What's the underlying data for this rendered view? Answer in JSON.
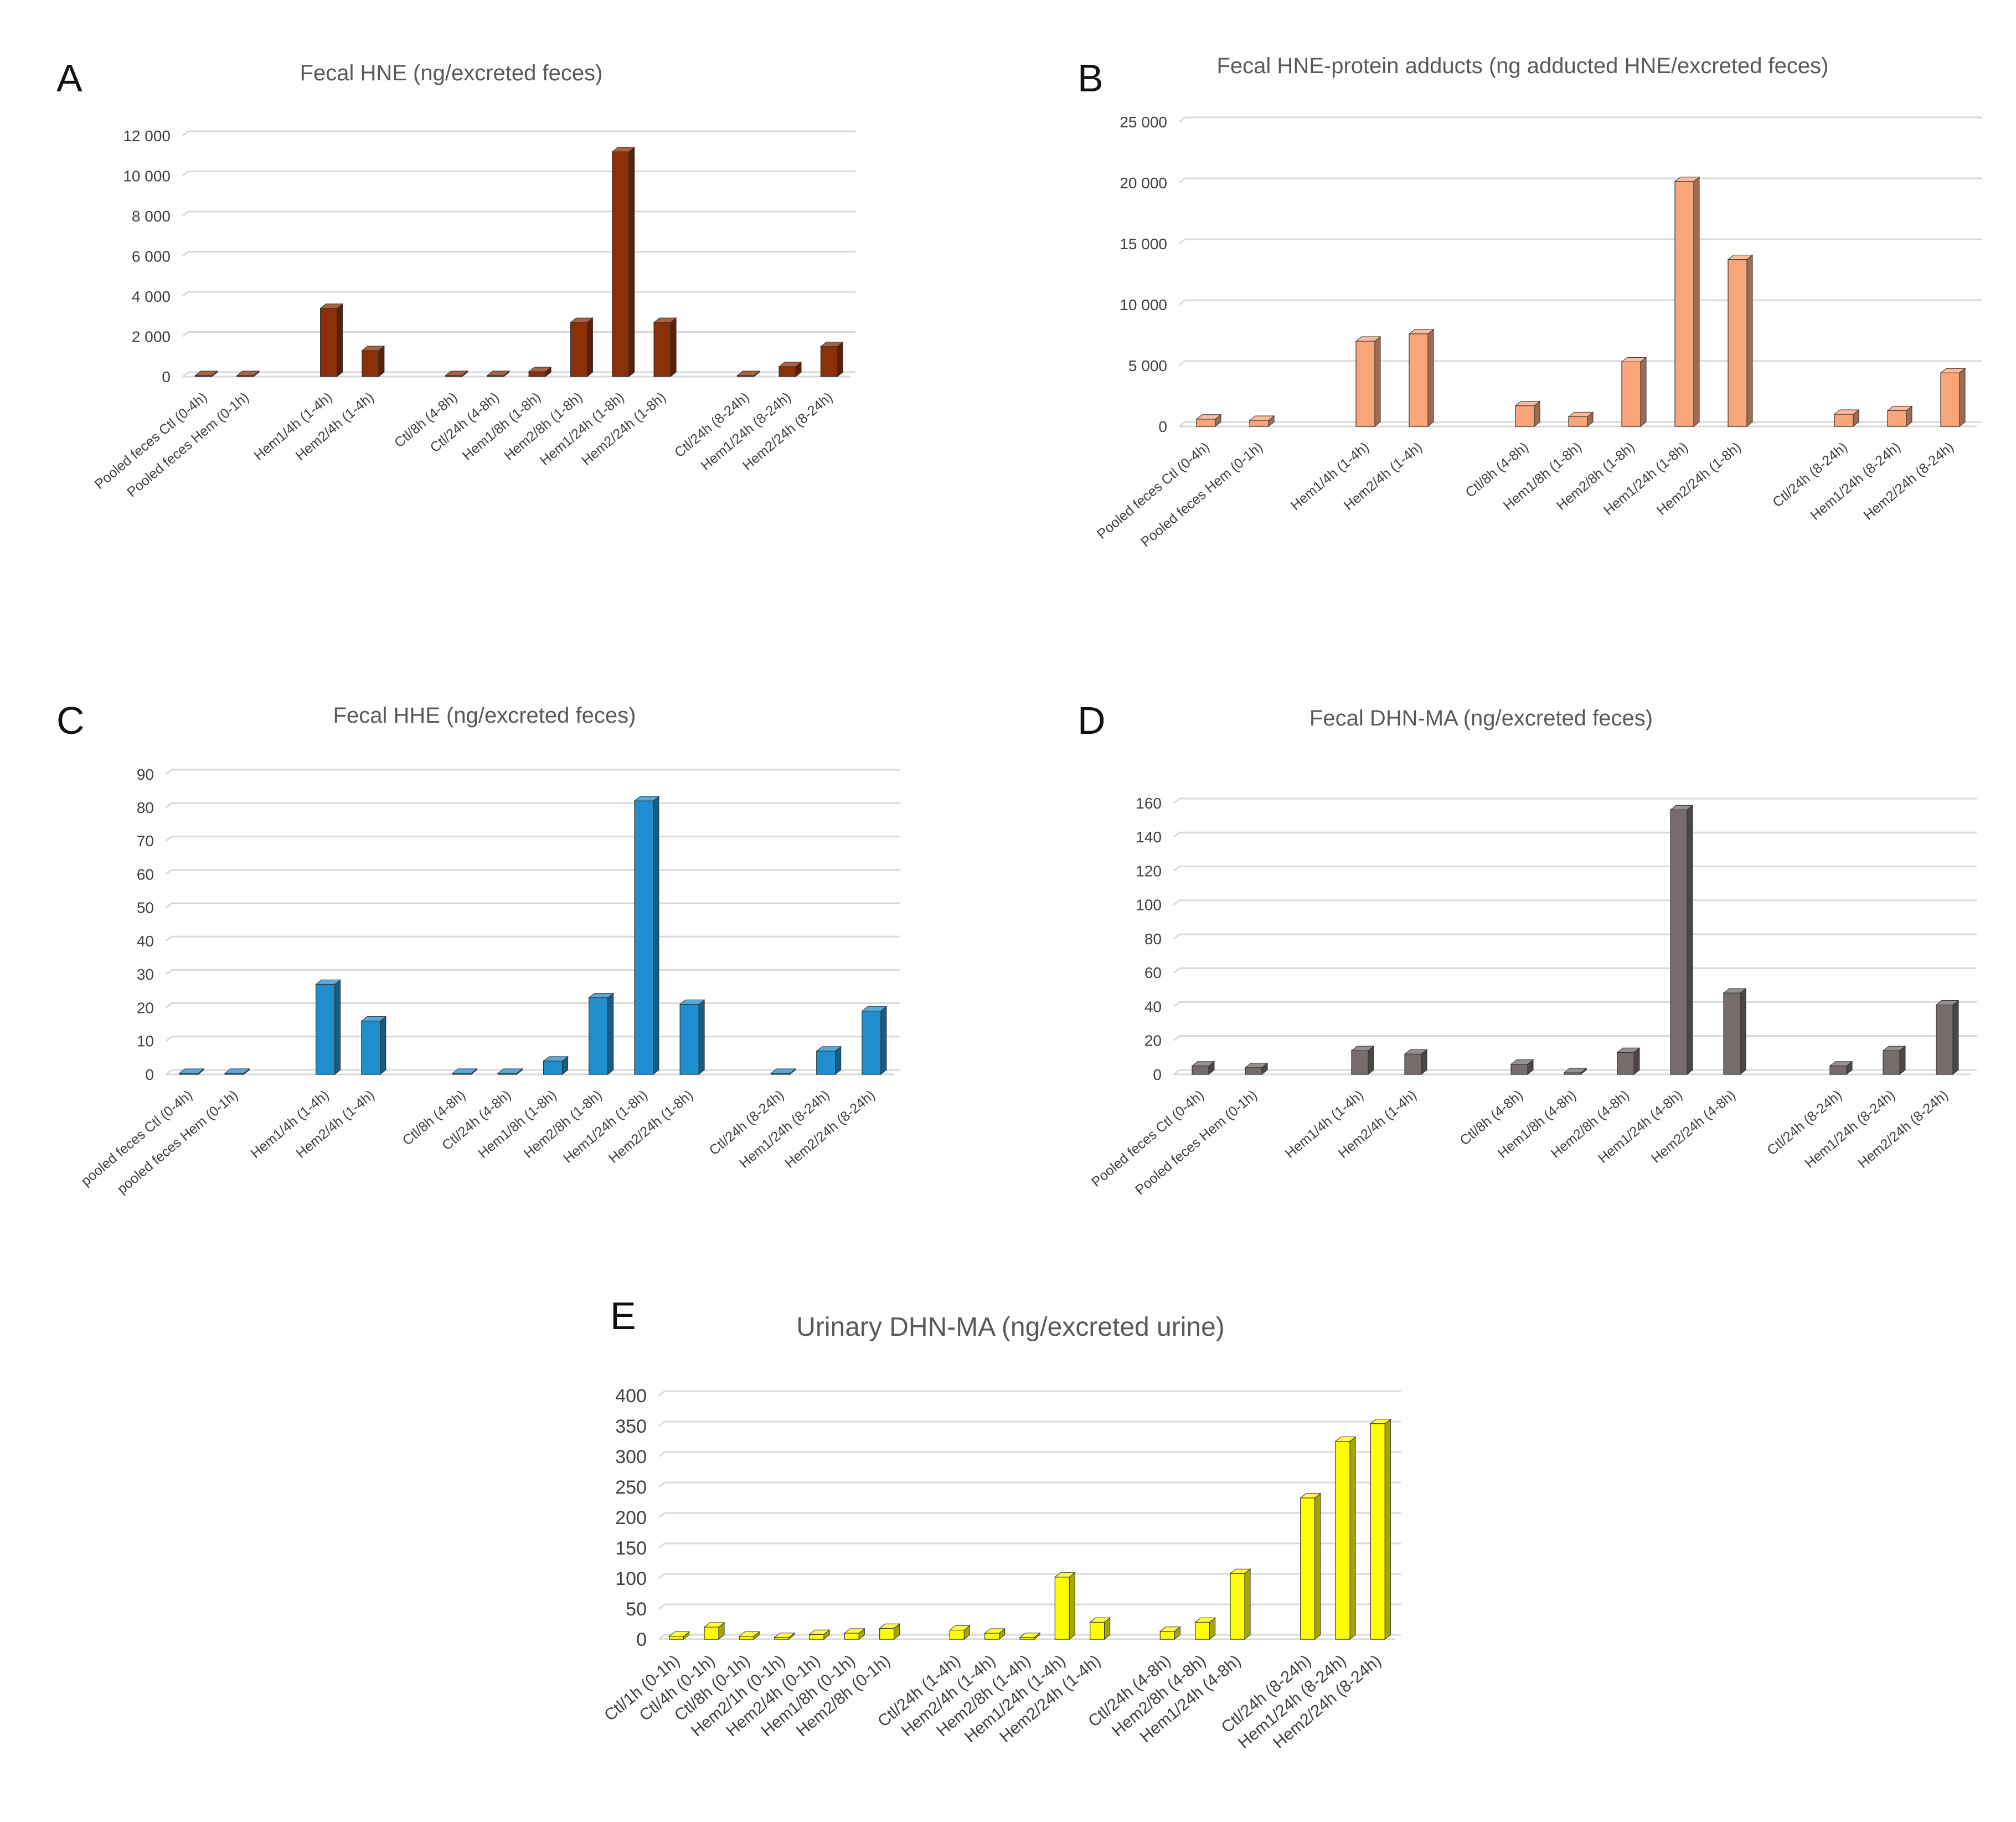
{
  "chart_data": [
    {
      "id": "A",
      "panel_label": "A",
      "type": "bar",
      "title": "Fecal HNE (ng/excreted feces)",
      "color": "#8B2F06",
      "ylim": [
        0,
        12000
      ],
      "yticks": [
        0,
        2000,
        4000,
        6000,
        8000,
        10000,
        12000
      ],
      "ytick_labels": [
        "0",
        "2 000",
        "4 000",
        "6 000",
        "8 000",
        "10 000",
        "12 000"
      ],
      "categories": [
        "Pooled feces Ctl (0-4h)",
        "Pooled feces Hem (0-1h)",
        "",
        "Hem1/4h (1-4h)",
        "Hem2/4h (1-4h)",
        "",
        "Ctl/8h (4-8h)",
        "Ctl/24h (4-8h)",
        "Hem1/8h (1-8h)",
        "Hem2/8h (1-8h)",
        "Hem1/24h (1-8h)",
        "Hem2/24h (1-8h)",
        "",
        "Ctl/24h (8-24h)",
        "Hem1/24h (8-24h)",
        "Hem2/24h (8-24h)"
      ],
      "values": [
        50,
        50,
        null,
        3400,
        1300,
        null,
        30,
        30,
        250,
        2700,
        11200,
        2700,
        null,
        50,
        500,
        1500
      ]
    },
    {
      "id": "B",
      "panel_label": "B",
      "type": "bar",
      "title": "Fecal HNE-protein  adducts  (ng adducted  HNE/excreted  feces)",
      "color": "#F9A57A",
      "ylim": [
        0,
        25000
      ],
      "yticks": [
        0,
        5000,
        10000,
        15000,
        20000,
        25000
      ],
      "ytick_labels": [
        "0",
        "5 000",
        "10 000",
        "15 000",
        "20 000",
        "25 000"
      ],
      "categories": [
        "Pooled feces Ctl (0-4h)",
        "Pooled feces Hem (0-1h)",
        "",
        "Hem1/4h (1-4h)",
        "Hem2/4h (1-4h)",
        "",
        "Ctl/8h (4-8h)",
        "Hem1/8h (1-8h)",
        "Hem2/8h (1-8h)",
        "Hem1/24h (1-8h)",
        "Hem2/24h (1-8h)",
        "",
        "Ctl/24h (8-24h)",
        "Hem1/24h (8-24h)",
        "Hem2/24h (8-24h)"
      ],
      "values": [
        600,
        500,
        null,
        7000,
        7600,
        null,
        1700,
        800,
        5300,
        20100,
        13700,
        null,
        1000,
        1300,
        4400
      ]
    },
    {
      "id": "C",
      "panel_label": "C",
      "type": "bar",
      "title": "Fecal HHE (ng/excreted feces)",
      "color": "#1F8FD0",
      "ylim": [
        0,
        90
      ],
      "yticks": [
        0,
        10,
        20,
        30,
        40,
        50,
        60,
        70,
        80,
        90
      ],
      "ytick_labels": [
        "0",
        "10",
        "20",
        "30",
        "40",
        "50",
        "60",
        "70",
        "80",
        "90"
      ],
      "categories": [
        "pooled feces Ctl (0-4h)",
        "pooled feces Hem (0-1h)",
        "",
        "Hem1/4h (1-4h)",
        "Hem2/4h (1-4h)",
        "",
        "Ctl/8h (4-8h)",
        "Ctl/24h (4-8h)",
        "Hem1/8h (1-8h)",
        "Hem2/8h (1-8h)",
        "Hem1/24h (1-8h)",
        "Hem2/24h (1-8h)",
        "",
        "Ctl/24h (8-24h)",
        "Hem1/24h (8-24h)",
        "Hem2/24h (8-24h)"
      ],
      "values": [
        0.3,
        0.3,
        null,
        27,
        16,
        null,
        0.3,
        0.3,
        4,
        23,
        82,
        21,
        null,
        0.3,
        7,
        19
      ]
    },
    {
      "id": "D",
      "panel_label": "D",
      "type": "bar",
      "title": "Fecal DHN-MA (ng/excreted feces)",
      "color": "#766C6C",
      "ylim": [
        0,
        160
      ],
      "yticks": [
        0,
        20,
        40,
        60,
        80,
        100,
        120,
        140,
        160
      ],
      "ytick_labels": [
        "0",
        "20",
        "40",
        "60",
        "80",
        "100",
        "120",
        "140",
        "160"
      ],
      "categories": [
        "Pooled feces Ctl (0-4h)",
        "Pooled feces Hem (0-1h)",
        "",
        "Hem1/4h (1-4h)",
        "Hem2/4h (1-4h)",
        "",
        "Ctl/8h (4-8h)",
        "Hem1/8h (4-8h)",
        "Hem2/8h (4-8h)",
        "Hem1/24h (4-8h)",
        "Hem2/24h (4-8h)",
        "",
        "Ctl/24h (8-24h)",
        "Hem1/24h (8-24h)",
        "Hem2/24h (8-24h)"
      ],
      "values": [
        5,
        4,
        null,
        14,
        12,
        null,
        6,
        1,
        13,
        156,
        48,
        null,
        5,
        14,
        41
      ]
    },
    {
      "id": "E",
      "panel_label": "E",
      "type": "bar",
      "title": "Urinary DHN-MA (ng/excreted urine)",
      "color": "#FFFF00",
      "ylim": [
        0,
        400
      ],
      "yticks": [
        0,
        50,
        100,
        150,
        200,
        250,
        300,
        350,
        400
      ],
      "ytick_labels": [
        "0",
        "50",
        "100",
        "150",
        "200",
        "250",
        "300",
        "350",
        "400"
      ],
      "categories": [
        "Ctl/1h (0-1h)",
        "Ctl/4h (0-1h)",
        "Ctl/8h (0-1h)",
        "Hem2/1h (0-1h)",
        "Hem2/4h (0-1h)",
        "Hem1/8h (0-1h)",
        "Hem2/8h (0-1h)",
        "",
        "Ctl/24h (1-4h)",
        "Hem2/4h (1-4h)",
        "Hem2/8h (1-4h)",
        "Hem1/24h (1-4h)",
        "Hem2/24h (1-4h)",
        "",
        "Ctl/24h (4-8h)",
        "Hem2/8h (4-8h)",
        "Hem1/24h (4-8h)",
        "",
        "Ctl/24h (8-24h)",
        "Hem1/24h (8-24h)",
        "Hem2/24h (8-24h)"
      ],
      "values": [
        5,
        20,
        5,
        3,
        8,
        10,
        18,
        null,
        15,
        10,
        3,
        102,
        28,
        null,
        13,
        28,
        108,
        null,
        232,
        325,
        354
      ]
    }
  ]
}
